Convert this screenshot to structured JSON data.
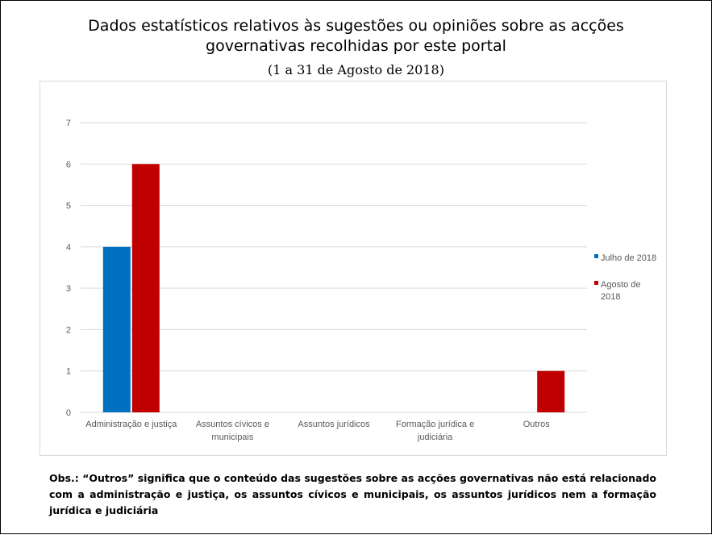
{
  "title_line1": "Dados estatísticos relativos às sugestões ou opiniões sobre as acções",
  "title_line2": "governativas recolhidas por este portal",
  "subtitle": "(1 a 31 de Agosto de 2018)",
  "note": "Obs.: “Outros” significa que o conteúdo das sugestões sobre as acções governativas não está relacionado com a administração e justiça, os assuntos cívicos e municipais, os assuntos jurídicos nem a formação jurídica e judiciária",
  "colors": {
    "series1": "#0070C0",
    "series2": "#C00000",
    "grid": "#d9d9d9",
    "axis_text": "#595959"
  },
  "chart_data": {
    "type": "bar",
    "title": "Dados estatísticos relativos às sugestões ou opiniões sobre as acções governativas recolhidas por este portal",
    "subtitle": "(1 a 31 de Agosto de 2018)",
    "xlabel": "",
    "ylabel": "",
    "ylim": [
      0,
      7
    ],
    "yticks": [
      0,
      1,
      2,
      3,
      4,
      5,
      6,
      7
    ],
    "grid": true,
    "legend_position": "right",
    "categories": [
      [
        "Administração e justiça"
      ],
      [
        "Assuntos cívicos e",
        "municipais"
      ],
      [
        "Assuntos jurídicos"
      ],
      [
        "Formação jurídica e",
        "judiciária"
      ],
      [
        "Outros"
      ]
    ],
    "series": [
      {
        "name": "Julho de 2018",
        "legend_lines": [
          "Julho de 2018"
        ],
        "values": [
          4,
          0,
          0,
          0,
          0
        ]
      },
      {
        "name": "Agosto de 2018",
        "legend_lines": [
          "Agosto de",
          "2018"
        ],
        "values": [
          6,
          0,
          0,
          0,
          1
        ]
      }
    ]
  }
}
